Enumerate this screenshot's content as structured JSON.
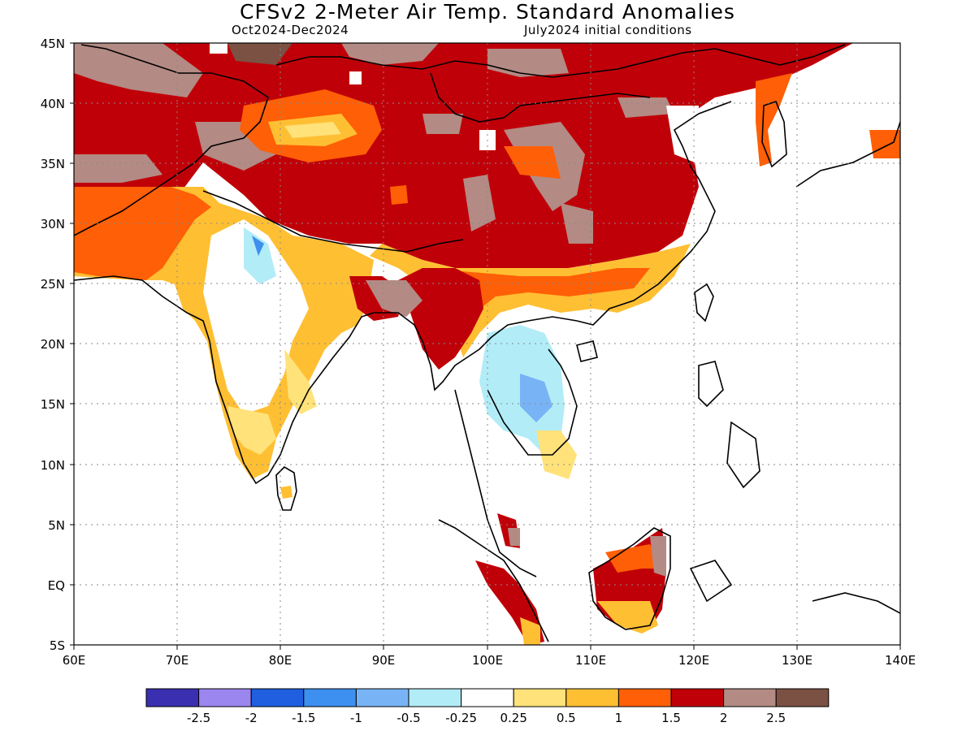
{
  "title": "CFSv2 2-Meter Air Temp. Standard Anomalies",
  "subtitle_left": "Oct2024-Dec2024",
  "subtitle_right": "July2024 initial conditions",
  "map": {
    "lon_range": [
      60,
      140
    ],
    "lat_range": [
      -5,
      45
    ],
    "lat_ticks": [
      "45N",
      "40N",
      "35N",
      "30N",
      "25N",
      "20N",
      "15N",
      "10N",
      "5N",
      "EQ",
      "5S"
    ],
    "lon_ticks": [
      "60E",
      "70E",
      "80E",
      "90E",
      "100E",
      "110E",
      "120E",
      "130E",
      "140E"
    ]
  },
  "legend": {
    "colors": [
      "#3a2fb0",
      "#9b86f0",
      "#1f5fe0",
      "#3d8ff0",
      "#78b4f5",
      "#b2ecf7",
      "#ffffff",
      "#ffe27a",
      "#ffbf33",
      "#ff5f06",
      "#c00008",
      "#b38a84",
      "#7a5143"
    ],
    "labels": [
      "-2.5",
      "-2",
      "-1.5",
      "-1",
      "-0.5",
      "-0.25",
      "0.25",
      "0.5",
      "1",
      "1.5",
      "2",
      "2.5"
    ]
  }
}
